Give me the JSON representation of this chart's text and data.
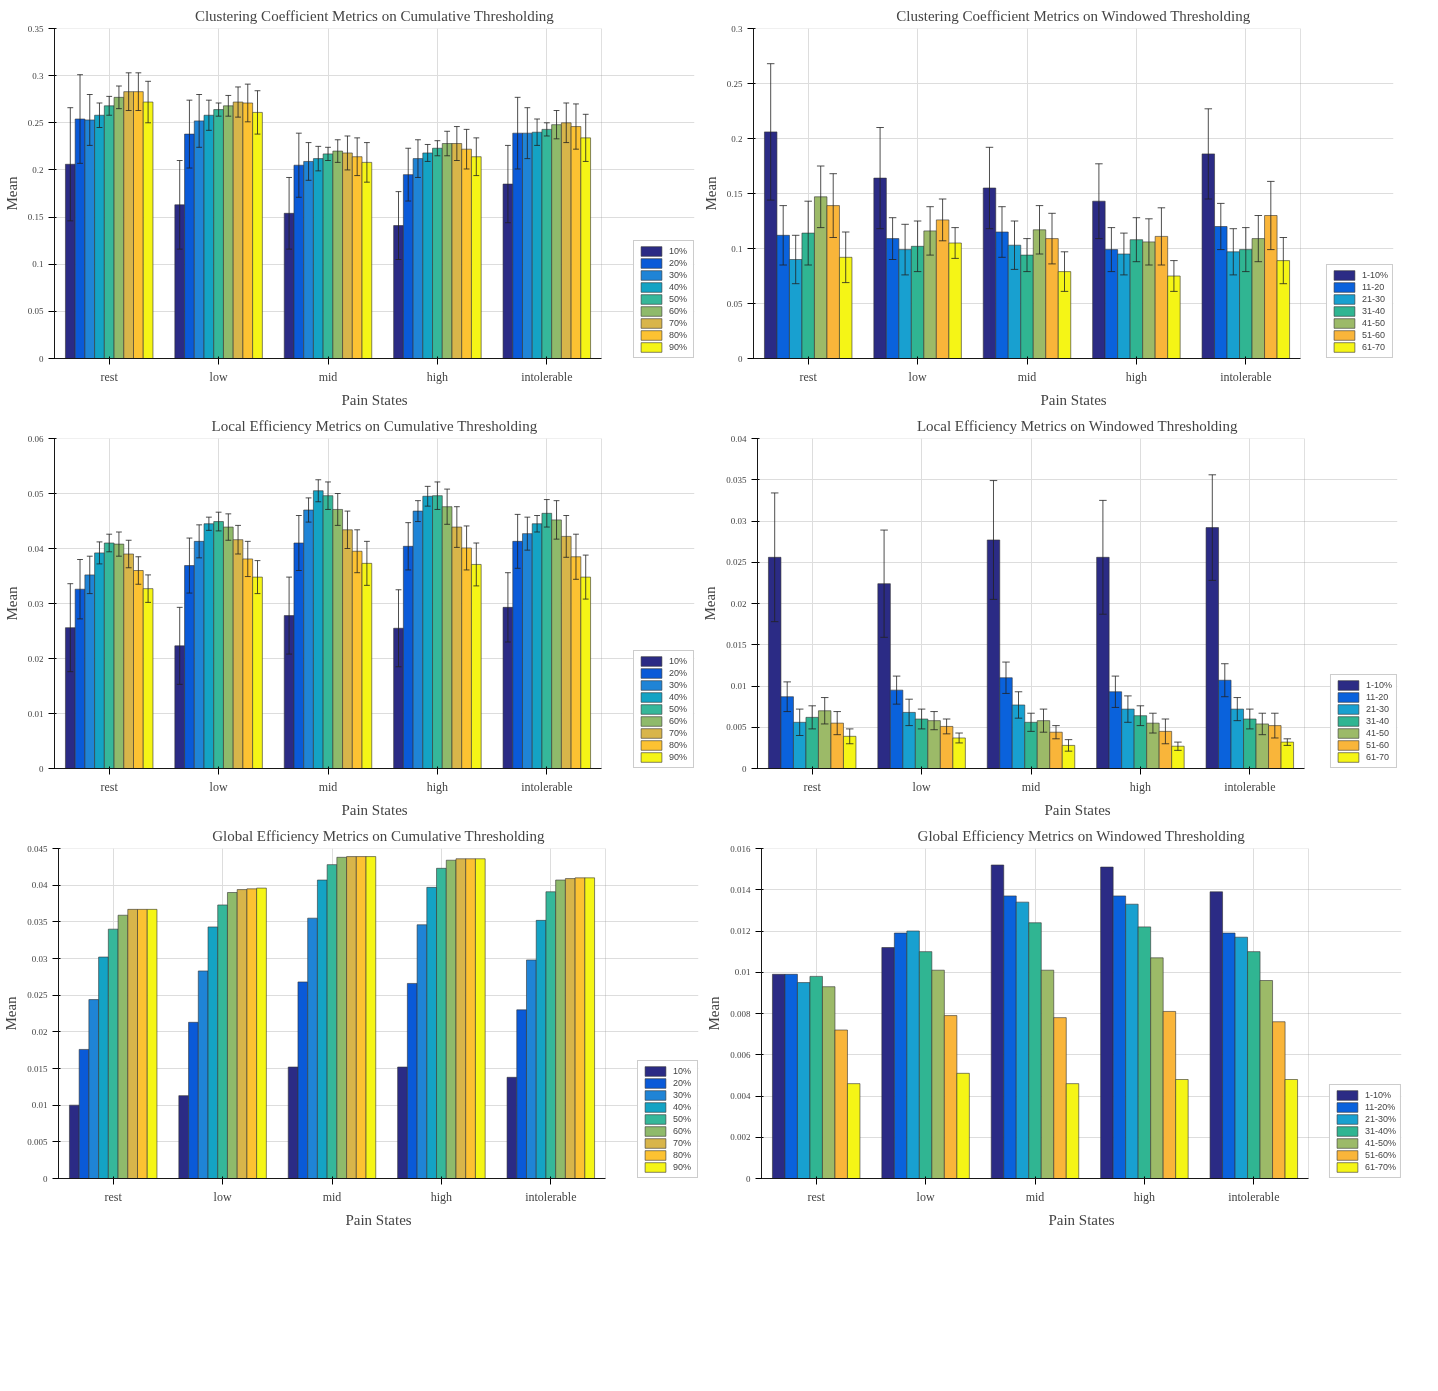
{
  "chart_data": [
    {
      "type": "bar",
      "title": "Clustering Coefficient Metrics on Cumulative Thresholding",
      "xlabel": "Pain States",
      "ylabel": "Mean",
      "categories": [
        "rest",
        "low",
        "mid",
        "high",
        "intolerable"
      ],
      "ylim": [
        0,
        0.35
      ],
      "yticks": [
        0,
        0.05,
        0.1,
        0.15,
        0.2,
        0.25,
        0.3,
        0.35
      ],
      "grid": true,
      "legend": "bottom right",
      "series": [
        {
          "name": "10%",
          "color": "#2b2b85",
          "values": [
            0.206,
            0.163,
            0.154,
            0.141,
            0.185
          ],
          "errors": [
            0.06,
            0.047,
            0.038,
            0.036,
            0.041
          ]
        },
        {
          "name": "20%",
          "color": "#0a5ad8",
          "values": [
            0.254,
            0.238,
            0.205,
            0.195,
            0.239
          ],
          "errors": [
            0.047,
            0.036,
            0.034,
            0.028,
            0.038
          ]
        },
        {
          "name": "30%",
          "color": "#1f84d6",
          "values": [
            0.253,
            0.252,
            0.209,
            0.212,
            0.239
          ],
          "errors": [
            0.027,
            0.028,
            0.02,
            0.02,
            0.027
          ]
        },
        {
          "name": "40%",
          "color": "#14a3c4",
          "values": [
            0.258,
            0.258,
            0.212,
            0.218,
            0.24
          ],
          "errors": [
            0.013,
            0.016,
            0.013,
            0.009,
            0.014
          ]
        },
        {
          "name": "50%",
          "color": "#35b79a",
          "values": [
            0.268,
            0.264,
            0.217,
            0.223,
            0.243
          ],
          "errors": [
            0.01,
            0.007,
            0.007,
            0.008,
            0.007
          ]
        },
        {
          "name": "60%",
          "color": "#8fba6b",
          "values": [
            0.277,
            0.268,
            0.22,
            0.228,
            0.248
          ],
          "errors": [
            0.012,
            0.011,
            0.012,
            0.013,
            0.015
          ]
        },
        {
          "name": "70%",
          "color": "#d8b54a",
          "values": [
            0.283,
            0.272,
            0.218,
            0.228,
            0.25
          ],
          "errors": [
            0.02,
            0.016,
            0.018,
            0.018,
            0.021
          ]
        },
        {
          "name": "80%",
          "color": "#fcc232",
          "values": [
            0.283,
            0.271,
            0.214,
            0.222,
            0.246
          ],
          "errors": [
            0.02,
            0.02,
            0.02,
            0.021,
            0.024
          ]
        },
        {
          "name": "90%",
          "color": "#f5f516",
          "values": [
            0.272,
            0.261,
            0.208,
            0.214,
            0.234
          ],
          "errors": [
            0.022,
            0.023,
            0.021,
            0.02,
            0.025
          ]
        }
      ]
    },
    {
      "type": "bar",
      "title": "Clustering Coefficient Metrics on Windowed Thresholding",
      "xlabel": "Pain States",
      "ylabel": "Mean",
      "categories": [
        "rest",
        "low",
        "mid",
        "high",
        "intolerable"
      ],
      "ylim": [
        0,
        0.3
      ],
      "yticks": [
        0,
        0.05,
        0.1,
        0.15,
        0.2,
        0.25,
        0.3
      ],
      "grid": true,
      "legend": "bottom right",
      "series": [
        {
          "name": "1-10%",
          "color": "#2b2b85",
          "values": [
            0.206,
            0.164,
            0.155,
            0.143,
            0.186
          ],
          "errors": [
            0.062,
            0.046,
            0.037,
            0.034,
            0.041
          ]
        },
        {
          "name": "11-20",
          "color": "#0a62dc",
          "values": [
            0.112,
            0.109,
            0.115,
            0.099,
            0.12
          ],
          "errors": [
            0.027,
            0.019,
            0.023,
            0.02,
            0.021
          ]
        },
        {
          "name": "21-30",
          "color": "#18a0d0",
          "values": [
            0.09,
            0.099,
            0.103,
            0.095,
            0.097
          ],
          "errors": [
            0.022,
            0.023,
            0.022,
            0.019,
            0.021
          ]
        },
        {
          "name": "31-40",
          "color": "#30b592",
          "values": [
            0.114,
            0.102,
            0.094,
            0.108,
            0.099
          ],
          "errors": [
            0.029,
            0.023,
            0.015,
            0.02,
            0.02
          ]
        },
        {
          "name": "41-50",
          "color": "#9cba68",
          "values": [
            0.147,
            0.116,
            0.117,
            0.106,
            0.109
          ],
          "errors": [
            0.028,
            0.022,
            0.022,
            0.021,
            0.021
          ]
        },
        {
          "name": "51-60",
          "color": "#f9b53a",
          "values": [
            0.139,
            0.126,
            0.109,
            0.111,
            0.13
          ],
          "errors": [
            0.029,
            0.019,
            0.023,
            0.026,
            0.031
          ]
        },
        {
          "name": "61-70",
          "color": "#f5f516",
          "values": [
            0.092,
            0.105,
            0.079,
            0.075,
            0.089
          ],
          "errors": [
            0.023,
            0.014,
            0.018,
            0.014,
            0.021
          ]
        }
      ]
    },
    {
      "type": "bar",
      "title": "Local Efficiency Metrics on Cumulative Thresholding",
      "xlabel": "Pain States",
      "ylabel": "Mean",
      "categories": [
        "rest",
        "low",
        "mid",
        "high",
        "intolerable"
      ],
      "ylim": [
        0,
        0.06
      ],
      "yticks": [
        0,
        0.01,
        0.02,
        0.03,
        0.04,
        0.05,
        0.06
      ],
      "grid": true,
      "legend": "bottom right",
      "series": [
        {
          "name": "10%",
          "color": "#2b2b85",
          "values": [
            0.0256,
            0.0223,
            0.0278,
            0.0255,
            0.0293
          ],
          "errors": [
            0.008,
            0.007,
            0.007,
            0.007,
            0.0063
          ]
        },
        {
          "name": "20%",
          "color": "#0a5ad8",
          "values": [
            0.0326,
            0.0369,
            0.041,
            0.0404,
            0.0413
          ],
          "errors": [
            0.0054,
            0.005,
            0.005,
            0.0043,
            0.0049
          ]
        },
        {
          "name": "30%",
          "color": "#1f84d6",
          "values": [
            0.0352,
            0.0413,
            0.047,
            0.0468,
            0.0427
          ],
          "errors": [
            0.0034,
            0.003,
            0.0022,
            0.0019,
            0.003
          ]
        },
        {
          "name": "40%",
          "color": "#14a3c4",
          "values": [
            0.0392,
            0.0445,
            0.0505,
            0.0495,
            0.0445
          ],
          "errors": [
            0.002,
            0.0012,
            0.002,
            0.0018,
            0.0015
          ]
        },
        {
          "name": "50%",
          "color": "#35b79a",
          "values": [
            0.041,
            0.0449,
            0.0496,
            0.0496,
            0.0464
          ],
          "errors": [
            0.0016,
            0.0017,
            0.0025,
            0.0025,
            0.0025
          ]
        },
        {
          "name": "60%",
          "color": "#8fba6b",
          "values": [
            0.0408,
            0.0439,
            0.0471,
            0.0476,
            0.0452
          ],
          "errors": [
            0.0022,
            0.0024,
            0.0029,
            0.0032,
            0.0035
          ]
        },
        {
          "name": "70%",
          "color": "#d8b54a",
          "values": [
            0.039,
            0.0416,
            0.0434,
            0.0439,
            0.0422
          ],
          "errors": [
            0.0025,
            0.0026,
            0.0034,
            0.0037,
            0.0038
          ]
        },
        {
          "name": "80%",
          "color": "#fcc232",
          "values": [
            0.036,
            0.0381,
            0.0395,
            0.0401,
            0.0385
          ],
          "errors": [
            0.0025,
            0.0032,
            0.0039,
            0.004,
            0.0041
          ]
        },
        {
          "name": "90%",
          "color": "#f5f516",
          "values": [
            0.0327,
            0.0348,
            0.0373,
            0.0371,
            0.0348
          ],
          "errors": [
            0.0025,
            0.003,
            0.004,
            0.0039,
            0.004
          ]
        }
      ]
    },
    {
      "type": "bar",
      "title": "Local Efficiency Metrics on Windowed Thresholding",
      "xlabel": "Pain States",
      "ylabel": "Mean",
      "categories": [
        "rest",
        "low",
        "mid",
        "high",
        "intolerable"
      ],
      "ylim": [
        0,
        0.04
      ],
      "yticks": [
        0,
        0.005,
        0.01,
        0.015,
        0.02,
        0.025,
        0.03,
        0.035,
        0.04
      ],
      "grid": true,
      "legend": "bottom right",
      "series": [
        {
          "name": "1-10%",
          "color": "#2b2b85",
          "values": [
            0.0256,
            0.0224,
            0.0277,
            0.0256,
            0.0292
          ],
          "errors": [
            0.0078,
            0.0065,
            0.0072,
            0.0069,
            0.0064
          ]
        },
        {
          "name": "11-20",
          "color": "#0a62dc",
          "values": [
            0.0087,
            0.0095,
            0.011,
            0.0093,
            0.0107
          ],
          "errors": [
            0.0018,
            0.0017,
            0.0019,
            0.0019,
            0.002
          ]
        },
        {
          "name": "21-30",
          "color": "#18a0d0",
          "values": [
            0.0056,
            0.0068,
            0.0077,
            0.0072,
            0.0072
          ],
          "errors": [
            0.0016,
            0.0016,
            0.0016,
            0.0016,
            0.0014
          ]
        },
        {
          "name": "31-40",
          "color": "#30b592",
          "values": [
            0.0062,
            0.006,
            0.0056,
            0.0064,
            0.006
          ],
          "errors": [
            0.0014,
            0.0012,
            0.0011,
            0.0012,
            0.0012
          ]
        },
        {
          "name": "41-50",
          "color": "#9cba68",
          "values": [
            0.007,
            0.0058,
            0.0058,
            0.0055,
            0.0054
          ],
          "errors": [
            0.0016,
            0.0011,
            0.0014,
            0.0012,
            0.0013
          ]
        },
        {
          "name": "51-60",
          "color": "#f9b53a",
          "values": [
            0.0055,
            0.0051,
            0.0044,
            0.0045,
            0.0052
          ],
          "errors": [
            0.0014,
            0.0009,
            0.0008,
            0.0015,
            0.0015
          ]
        },
        {
          "name": "61-70",
          "color": "#f5f516",
          "values": [
            0.0039,
            0.0037,
            0.0028,
            0.0027,
            0.0032
          ],
          "errors": [
            0.0009,
            0.0006,
            0.0007,
            0.0005,
            0.0004
          ]
        }
      ]
    },
    {
      "type": "bar",
      "title": "Global Efficiency Metrics on Cumulative Thresholding",
      "xlabel": "Pain States",
      "ylabel": "Mean",
      "categories": [
        "rest",
        "low",
        "mid",
        "high",
        "intolerable"
      ],
      "ylim": [
        0,
        0.045
      ],
      "yticks": [
        0,
        0.005,
        0.01,
        0.015,
        0.02,
        0.025,
        0.03,
        0.035,
        0.04,
        0.045
      ],
      "grid": true,
      "legend": "bottom right",
      "series": [
        {
          "name": "10%",
          "color": "#2b2b85",
          "values": [
            0.01,
            0.0113,
            0.0152,
            0.0152,
            0.0138
          ]
        },
        {
          "name": "20%",
          "color": "#0a5ad8",
          "values": [
            0.0176,
            0.0213,
            0.0268,
            0.0266,
            0.023
          ]
        },
        {
          "name": "30%",
          "color": "#1f84d6",
          "values": [
            0.0244,
            0.0283,
            0.0355,
            0.0346,
            0.0298
          ]
        },
        {
          "name": "40%",
          "color": "#14a3c4",
          "values": [
            0.0302,
            0.0343,
            0.0407,
            0.0397,
            0.0352
          ]
        },
        {
          "name": "50%",
          "color": "#35b79a",
          "values": [
            0.034,
            0.0373,
            0.0428,
            0.0423,
            0.0391
          ]
        },
        {
          "name": "60%",
          "color": "#8fba6b",
          "values": [
            0.0359,
            0.039,
            0.0438,
            0.0434,
            0.0407
          ]
        },
        {
          "name": "70%",
          "color": "#d8b54a",
          "values": [
            0.0367,
            0.0394,
            0.0439,
            0.0436,
            0.0409
          ]
        },
        {
          "name": "80%",
          "color": "#fcc232",
          "values": [
            0.0367,
            0.0395,
            0.0439,
            0.0436,
            0.041
          ]
        },
        {
          "name": "90%",
          "color": "#f5f516",
          "values": [
            0.0367,
            0.0396,
            0.0439,
            0.0436,
            0.041
          ]
        }
      ]
    },
    {
      "type": "bar",
      "title": "Global Efficiency Metrics on Windowed Thresholding",
      "xlabel": "Pain States",
      "ylabel": "Mean",
      "categories": [
        "rest",
        "low",
        "mid",
        "high",
        "intolerable"
      ],
      "ylim": [
        0,
        0.016
      ],
      "yticks": [
        0,
        0.002,
        0.004,
        0.006,
        0.008,
        0.01,
        0.012,
        0.014,
        0.016
      ],
      "grid": true,
      "legend": "bottom right",
      "series": [
        {
          "name": "1-10%",
          "color": "#2b2b85",
          "values": [
            0.0099,
            0.0112,
            0.0152,
            0.0151,
            0.0139
          ]
        },
        {
          "name": "11-20%",
          "color": "#0a62dc",
          "values": [
            0.0099,
            0.0119,
            0.0137,
            0.0137,
            0.0119
          ]
        },
        {
          "name": "21-30%",
          "color": "#18a0d0",
          "values": [
            0.0095,
            0.012,
            0.0134,
            0.0133,
            0.0117
          ]
        },
        {
          "name": "31-40%",
          "color": "#30b592",
          "values": [
            0.0098,
            0.011,
            0.0124,
            0.0122,
            0.011
          ]
        },
        {
          "name": "41-50%",
          "color": "#9cba68",
          "values": [
            0.0093,
            0.0101,
            0.0101,
            0.0107,
            0.0096
          ]
        },
        {
          "name": "51-60%",
          "color": "#f9b53a",
          "values": [
            0.0072,
            0.0079,
            0.0078,
            0.0081,
            0.0076
          ]
        },
        {
          "name": "61-70%",
          "color": "#f5f516",
          "values": [
            0.0046,
            0.0051,
            0.0046,
            0.0048,
            0.0048
          ]
        }
      ]
    }
  ]
}
